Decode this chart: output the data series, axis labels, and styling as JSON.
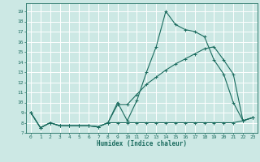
{
  "title": "",
  "xlabel": "Humidex (Indice chaleur)",
  "bg_color": "#cce8e4",
  "line_color": "#1a6b5e",
  "grid_color": "#ffffff",
  "xlim": [
    -0.5,
    23.5
  ],
  "ylim": [
    7,
    19.8
  ],
  "yticks": [
    7,
    8,
    9,
    10,
    11,
    12,
    13,
    14,
    15,
    16,
    17,
    18,
    19
  ],
  "xticks": [
    0,
    1,
    2,
    3,
    4,
    5,
    6,
    7,
    8,
    9,
    10,
    11,
    12,
    13,
    14,
    15,
    16,
    17,
    18,
    19,
    20,
    21,
    22,
    23
  ],
  "line1_x": [
    0,
    1,
    2,
    3,
    4,
    5,
    6,
    7,
    8,
    9,
    10,
    11,
    12,
    13,
    14,
    15,
    16,
    17,
    18,
    19,
    20,
    21,
    22,
    23
  ],
  "line1_y": [
    9.0,
    7.5,
    8.0,
    7.7,
    7.7,
    7.7,
    7.7,
    7.6,
    8.0,
    10.0,
    8.2,
    10.2,
    13.0,
    15.5,
    19.0,
    17.7,
    17.2,
    17.0,
    16.5,
    14.2,
    12.8,
    10.0,
    8.2,
    8.5
  ],
  "line2_x": [
    0,
    1,
    2,
    3,
    4,
    5,
    6,
    7,
    8,
    9,
    10,
    11,
    12,
    13,
    14,
    15,
    16,
    17,
    18,
    19,
    20,
    21,
    22,
    23
  ],
  "line2_y": [
    9.0,
    7.5,
    8.0,
    7.7,
    7.7,
    7.7,
    7.7,
    7.6,
    8.0,
    9.8,
    9.8,
    10.8,
    11.8,
    12.5,
    13.2,
    13.8,
    14.3,
    14.8,
    15.3,
    15.5,
    14.2,
    12.8,
    8.2,
    8.5
  ],
  "line3_x": [
    0,
    1,
    2,
    3,
    4,
    5,
    6,
    7,
    8,
    9,
    10,
    11,
    12,
    13,
    14,
    15,
    16,
    17,
    18,
    19,
    20,
    21,
    22,
    23
  ],
  "line3_y": [
    9.0,
    7.5,
    8.0,
    7.7,
    7.7,
    7.7,
    7.7,
    7.6,
    8.0,
    8.0,
    8.0,
    8.0,
    8.0,
    8.0,
    8.0,
    8.0,
    8.0,
    8.0,
    8.0,
    8.0,
    8.0,
    8.0,
    8.2,
    8.5
  ]
}
